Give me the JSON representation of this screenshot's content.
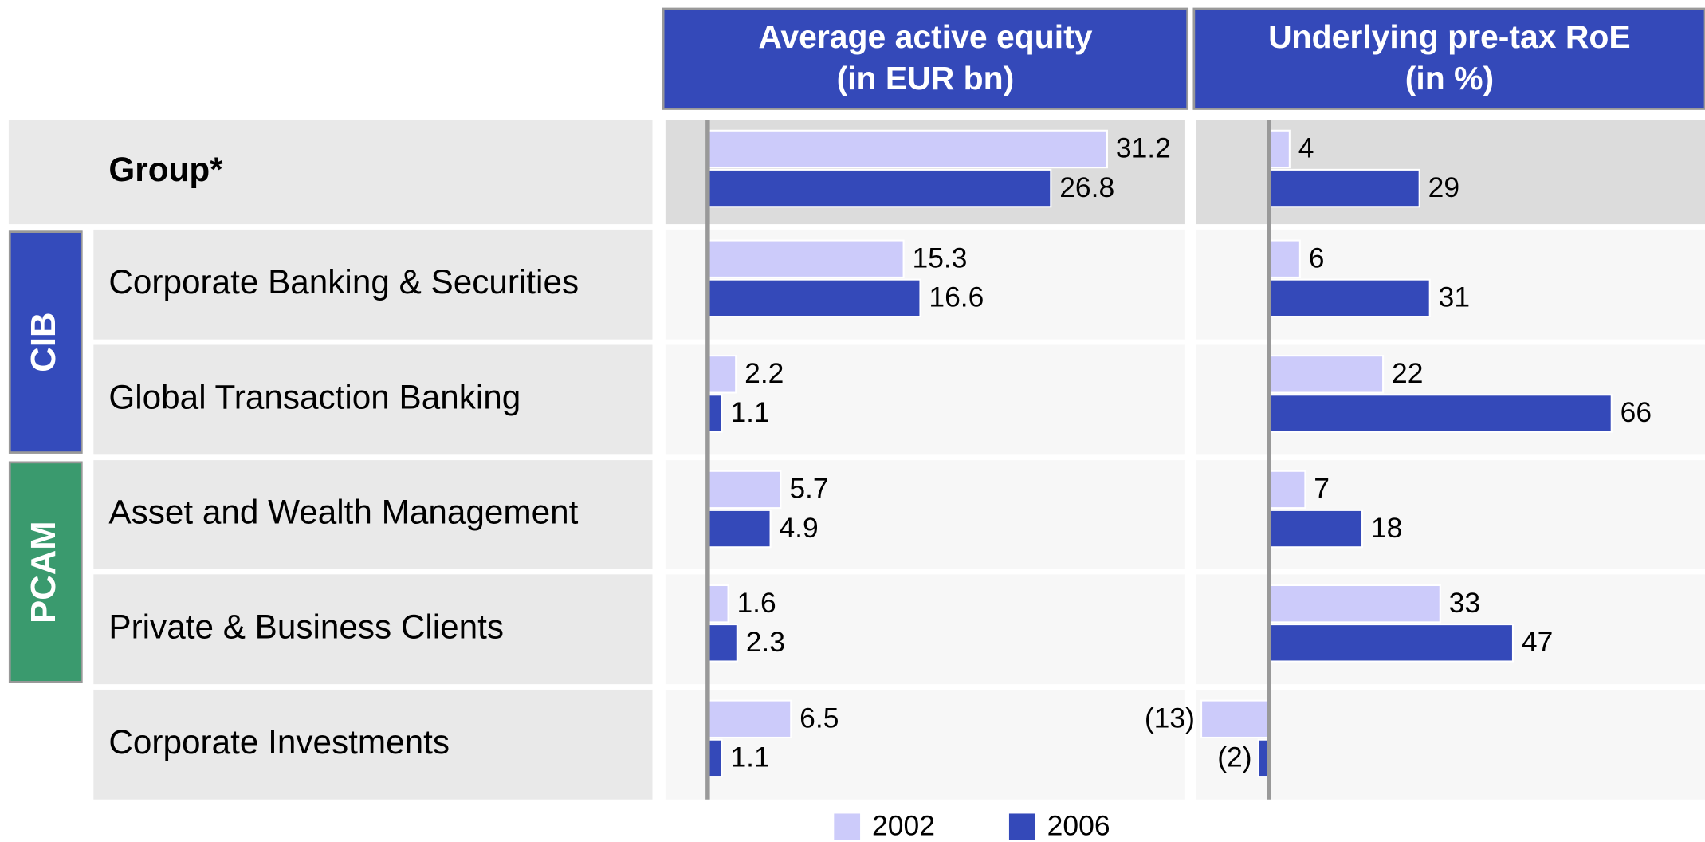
{
  "chart_data": {
    "type": "bar",
    "categories": [
      "Group*",
      "Corporate Banking & Securities",
      "Global Transaction Banking",
      "Asset and Wealth Management",
      "Private & Business Clients",
      "Corporate Investments"
    ],
    "groups": [
      {
        "label": "CIB",
        "color": "#344bbb",
        "from": 1,
        "to": 2
      },
      {
        "label": "PCAM",
        "color": "#3a9a6e",
        "from": 3,
        "to": 4
      }
    ],
    "series": [
      {
        "name": "2002",
        "color": "#cccbfa"
      },
      {
        "name": "2006",
        "color": "#3449b9"
      }
    ],
    "panels": [
      {
        "title": "Average active equity",
        "subtitle": "(in EUR bn)",
        "xlim": [
          -3.3,
          37.3
        ],
        "values": [
          [
            31.2,
            15.3,
            2.2,
            5.7,
            1.6,
            6.5
          ],
          [
            26.8,
            16.6,
            1.1,
            4.9,
            2.3,
            1.1
          ]
        ]
      },
      {
        "title": "Underlying pre-tax RoE",
        "subtitle": "(in %)",
        "xlim": [
          -14,
          84
        ],
        "values": [
          [
            4,
            6,
            22,
            7,
            33,
            -13
          ],
          [
            29,
            31,
            66,
            18,
            47,
            -2
          ]
        ],
        "value_labels": [
          [
            "4",
            "6",
            "22",
            "7",
            "33",
            "(13)"
          ],
          [
            "29",
            "31",
            "66",
            "18",
            "47",
            "(2)"
          ]
        ]
      }
    ]
  }
}
